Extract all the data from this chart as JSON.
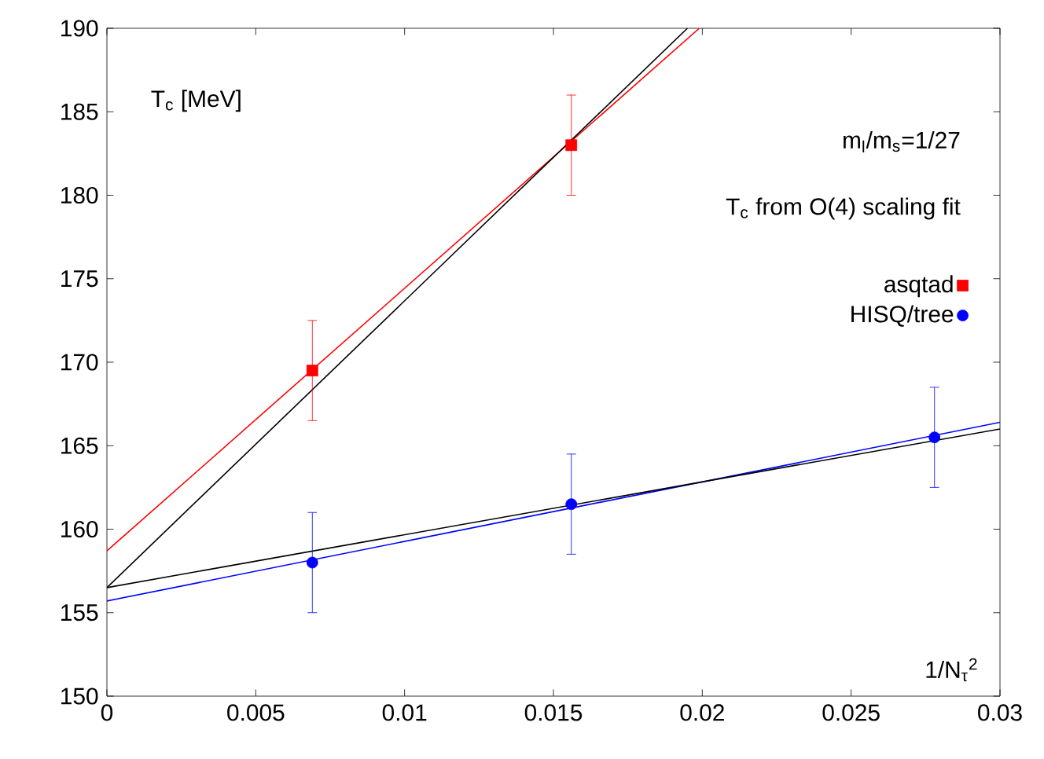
{
  "chart_data": {
    "type": "scatter",
    "xlabel": "1/N$_{τ}$$^{2}$",
    "ylabel": "T$_{c}$ [MeV]",
    "annotations": [
      "m$_{l}$/m$_{s}$=1/27",
      "T$_{c}$ from O(4) scaling fit"
    ],
    "xlim": [
      0,
      0.03
    ],
    "ylim": [
      150,
      190
    ],
    "xticks": [
      0,
      0.005,
      0.01,
      0.015,
      0.02,
      0.025,
      0.03
    ],
    "yticks": [
      150,
      155,
      160,
      165,
      170,
      175,
      180,
      185,
      190
    ],
    "grid": false,
    "legend": "right",
    "series": [
      {
        "type": "line",
        "color": "#ff0000",
        "marker": "none",
        "x": [
          0,
          0.0199
        ],
        "values": [
          158.7,
          190
        ]
      },
      {
        "type": "line",
        "color": "#000000",
        "marker": "none",
        "x": [
          0,
          0.0195
        ],
        "values": [
          156.5,
          190
        ]
      },
      {
        "type": "line",
        "color": "#0000ff",
        "marker": "none",
        "x": [
          0,
          0.03
        ],
        "values": [
          155.7,
          166.4
        ]
      },
      {
        "type": "line",
        "color": "#000000",
        "marker": "none",
        "x": [
          0,
          0.03
        ],
        "values": [
          156.5,
          166
        ]
      },
      {
        "name": "asqtad",
        "color": "#ff0000",
        "marker": "square",
        "x": [
          0.0069,
          0.0156
        ],
        "values": [
          169.5,
          183
        ],
        "errors": [
          3,
          3
        ]
      },
      {
        "name": "HISQ/tree",
        "color": "#0000ff",
        "marker": "circle",
        "x": [
          0.0069,
          0.0156,
          0.0278
        ],
        "values": [
          158,
          161.5,
          165.5
        ],
        "errors": [
          3,
          3,
          3
        ]
      }
    ]
  }
}
